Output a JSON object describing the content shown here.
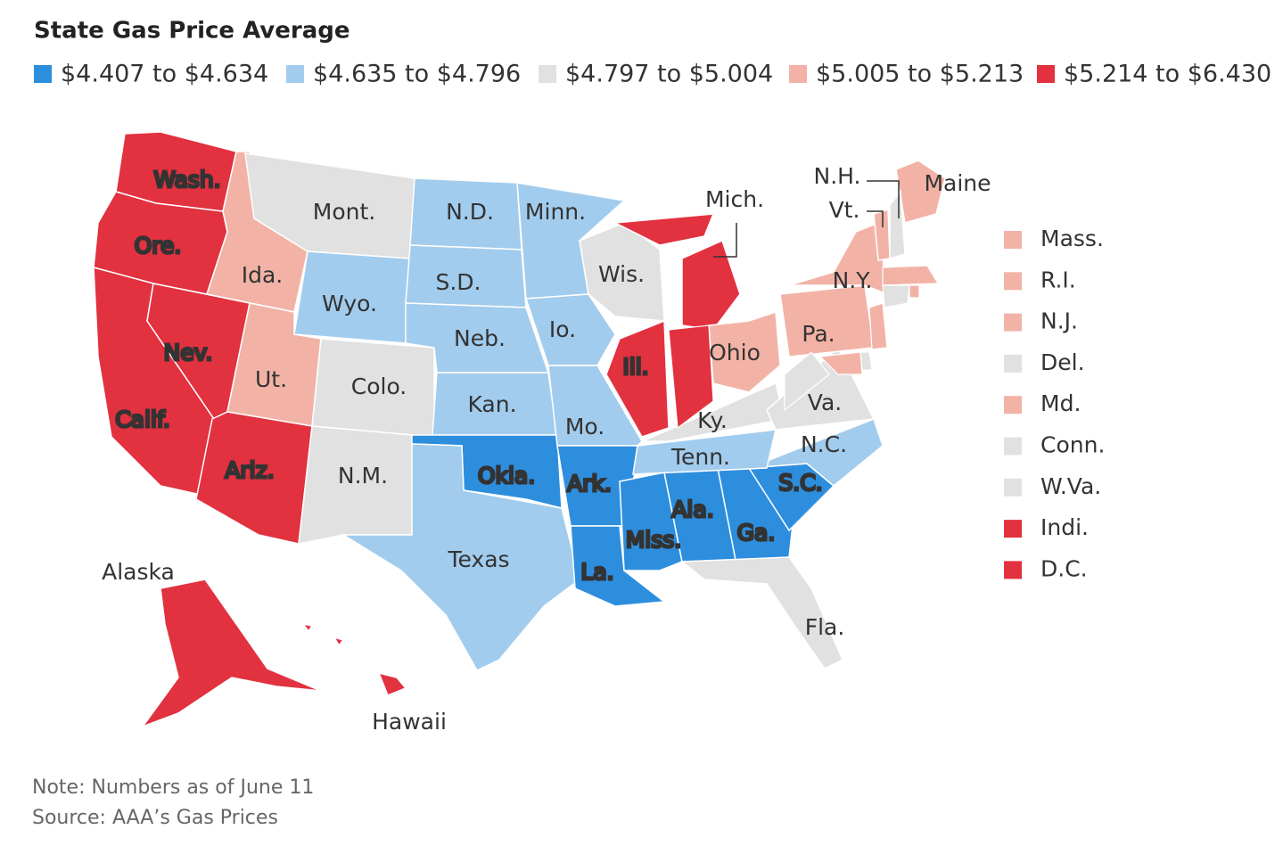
{
  "title": "State Gas Price Average",
  "legend": [
    {
      "label": "$4.407 to $4.634",
      "color": "#2e8ede"
    },
    {
      "label": "$4.635 to $4.796",
      "color": "#a2cced"
    },
    {
      "label": "$4.797 to $5.004",
      "color": "#e1e1e1"
    },
    {
      "label": "$5.005 to $5.213",
      "color": "#f2b3a6"
    },
    {
      "label": "$5.214 to $6.430",
      "color": "#e2313f"
    }
  ],
  "states": [
    {
      "label": "Wash.",
      "bin": 4
    },
    {
      "label": "Ore.",
      "bin": 4
    },
    {
      "label": "Calif.",
      "bin": 4
    },
    {
      "label": "Nev.",
      "bin": 4
    },
    {
      "label": "Ida.",
      "bin": 3
    },
    {
      "label": "Mont.",
      "bin": 2
    },
    {
      "label": "Wyo.",
      "bin": 1
    },
    {
      "label": "Ut.",
      "bin": 3
    },
    {
      "label": "Colo.",
      "bin": 2
    },
    {
      "label": "Ariz.",
      "bin": 4
    },
    {
      "label": "N.M.",
      "bin": 2
    },
    {
      "label": "N.D.",
      "bin": 1
    },
    {
      "label": "S.D.",
      "bin": 1
    },
    {
      "label": "Neb.",
      "bin": 1
    },
    {
      "label": "Kan.",
      "bin": 1
    },
    {
      "label": "Okla.",
      "bin": 0
    },
    {
      "label": "Texas",
      "bin": 1
    },
    {
      "label": "Minn.",
      "bin": 1
    },
    {
      "label": "Io.",
      "bin": 1
    },
    {
      "label": "Mo.",
      "bin": 1
    },
    {
      "label": "Ark.",
      "bin": 0
    },
    {
      "label": "La.",
      "bin": 0
    },
    {
      "label": "Miss.",
      "bin": 0
    },
    {
      "label": "Ala.",
      "bin": 0
    },
    {
      "label": "Ga.",
      "bin": 0
    },
    {
      "label": "Fla.",
      "bin": 2
    },
    {
      "label": "S.C.",
      "bin": 0
    },
    {
      "label": "N.C.",
      "bin": 1
    },
    {
      "label": "Tenn.",
      "bin": 1
    },
    {
      "label": "Ky.",
      "bin": 2
    },
    {
      "label": "Va.",
      "bin": 2
    },
    {
      "label": "Wis.",
      "bin": 2
    },
    {
      "label": "Ill.",
      "bin": 4
    },
    {
      "label": "Mich.",
      "bin": 4
    },
    {
      "label": "Ohio",
      "bin": 3
    },
    {
      "label": "Pa.",
      "bin": 3
    },
    {
      "label": "N.Y.",
      "bin": 3
    },
    {
      "label": "Maine",
      "bin": 3
    },
    {
      "label": "N.H.",
      "bin": 2
    },
    {
      "label": "Vt.",
      "bin": 3
    },
    {
      "label": "Alaska",
      "bin": 4
    },
    {
      "label": "Hawaii",
      "bin": 4
    }
  ],
  "side_states": [
    {
      "label": "Mass.",
      "bin": 3
    },
    {
      "label": "R.I.",
      "bin": 3
    },
    {
      "label": "N.J.",
      "bin": 3
    },
    {
      "label": "Del.",
      "bin": 2
    },
    {
      "label": "Md.",
      "bin": 3
    },
    {
      "label": "Conn.",
      "bin": 2
    },
    {
      "label": "W.Va.",
      "bin": 2
    },
    {
      "label": "Indi.",
      "bin": 4
    },
    {
      "label": "D.C.",
      "bin": 4
    }
  ],
  "note": "Note: Numbers as of June 11",
  "source": "Source: AAA’s Gas Prices"
}
